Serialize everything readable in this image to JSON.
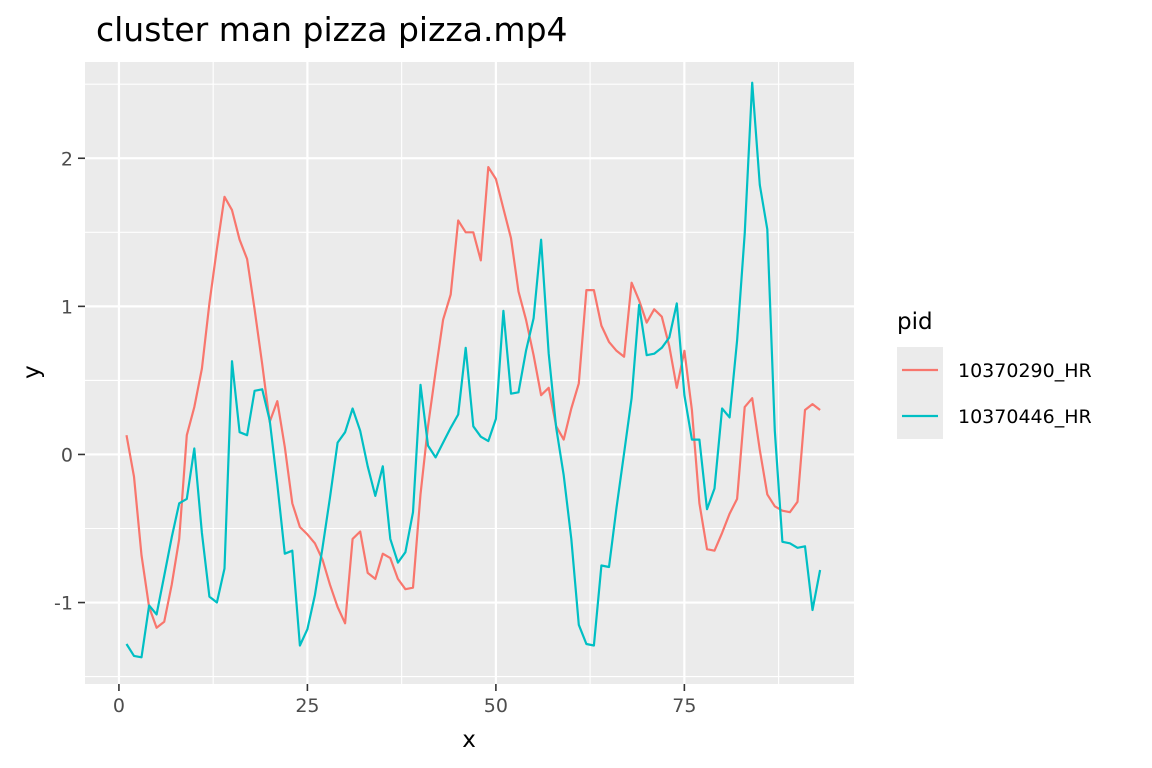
{
  "chart_data": {
    "type": "line",
    "title": "cluster man pizza pizza.mp4",
    "xlabel": "x",
    "ylabel": "y",
    "xlim": [
      -4.5,
      97.5
    ],
    "ylim": [
      -1.55,
      2.65
    ],
    "x_ticks": [
      0,
      25,
      50,
      75
    ],
    "x_tick_labels": [
      "0",
      "25",
      "50",
      "75"
    ],
    "y_ticks": [
      -1,
      0,
      1,
      2
    ],
    "y_tick_labels": [
      "-1",
      "0",
      "1",
      "2"
    ],
    "grid": true,
    "legend_position": "right",
    "legend": {
      "title": "pid"
    },
    "series": [
      {
        "name": "10370290_HR",
        "color": "#F8766D",
        "x": [
          1,
          2,
          3,
          4,
          5,
          6,
          7,
          8,
          9,
          10,
          11,
          12,
          13,
          14,
          15,
          16,
          17,
          18,
          19,
          20,
          21,
          22,
          23,
          24,
          25,
          26,
          27,
          28,
          29,
          30,
          31,
          32,
          33,
          34,
          35,
          36,
          37,
          38,
          39,
          40,
          41,
          42,
          43,
          44,
          45,
          46,
          47,
          48,
          49,
          50,
          51,
          52,
          53,
          54,
          55,
          56,
          57,
          58,
          59,
          60,
          61,
          62,
          63,
          64,
          65,
          66,
          67,
          68,
          69,
          70,
          71,
          72,
          73,
          74,
          75,
          76,
          77,
          78,
          79,
          80,
          81,
          82,
          83,
          84,
          85,
          86,
          87,
          88,
          89,
          90,
          91,
          92,
          93
        ],
        "y": [
          0.13,
          -0.15,
          -0.68,
          -1.03,
          -1.17,
          -1.13,
          -0.88,
          -0.57,
          0.13,
          0.32,
          0.58,
          1.02,
          1.39,
          1.74,
          1.65,
          1.45,
          1.32,
          0.98,
          0.61,
          0.22,
          0.36,
          0.05,
          -0.33,
          -0.49,
          -0.54,
          -0.6,
          -0.71,
          -0.88,
          -1.03,
          -1.14,
          -0.57,
          -0.52,
          -0.8,
          -0.84,
          -0.67,
          -0.7,
          -0.84,
          -0.91,
          -0.9,
          -0.27,
          0.19,
          0.56,
          0.91,
          1.08,
          1.58,
          1.5,
          1.5,
          1.31,
          1.94,
          1.86,
          1.66,
          1.46,
          1.1,
          0.91,
          0.67,
          0.4,
          0.45,
          0.19,
          0.1,
          0.31,
          0.48,
          1.11,
          1.11,
          0.87,
          0.76,
          0.7,
          0.66,
          1.16,
          1.04,
          0.89,
          0.98,
          0.93,
          0.73,
          0.45,
          0.7,
          0.3,
          -0.33,
          -0.64,
          -0.65,
          -0.53,
          -0.4,
          -0.3,
          0.32,
          0.38,
          0.03,
          -0.27,
          -0.35,
          -0.38,
          -0.39,
          -0.32,
          0.3,
          0.34,
          0.3
        ]
      },
      {
        "name": "10370446_HR",
        "color": "#00BFC4",
        "x": [
          1,
          2,
          3,
          4,
          5,
          6,
          7,
          8,
          9,
          10,
          11,
          12,
          13,
          14,
          15,
          16,
          17,
          18,
          19,
          20,
          21,
          22,
          23,
          24,
          25,
          26,
          27,
          28,
          29,
          30,
          31,
          32,
          33,
          34,
          35,
          36,
          37,
          38,
          39,
          40,
          41,
          42,
          43,
          44,
          45,
          46,
          47,
          48,
          49,
          50,
          51,
          52,
          53,
          54,
          55,
          56,
          57,
          58,
          59,
          60,
          61,
          62,
          63,
          64,
          65,
          66,
          67,
          68,
          69,
          70,
          71,
          72,
          73,
          74,
          75,
          76,
          77,
          78,
          79,
          80,
          81,
          82,
          83,
          84,
          85,
          86,
          87,
          88,
          89,
          90,
          91,
          92,
          93
        ],
        "y": [
          -1.28,
          -1.36,
          -1.37,
          -1.02,
          -1.08,
          -0.82,
          -0.56,
          -0.33,
          -0.3,
          0.04,
          -0.53,
          -0.96,
          -1.0,
          -0.77,
          0.63,
          0.15,
          0.13,
          0.43,
          0.44,
          0.23,
          -0.2,
          -0.67,
          -0.65,
          -1.29,
          -1.18,
          -0.95,
          -0.63,
          -0.29,
          0.08,
          0.15,
          0.31,
          0.16,
          -0.08,
          -0.28,
          -0.08,
          -0.57,
          -0.73,
          -0.66,
          -0.39,
          0.47,
          0.06,
          -0.02,
          0.08,
          0.18,
          0.27,
          0.72,
          0.19,
          0.12,
          0.09,
          0.24,
          0.97,
          0.41,
          0.42,
          0.7,
          0.92,
          1.45,
          0.68,
          0.18,
          -0.14,
          -0.57,
          -1.15,
          -1.28,
          -1.29,
          -0.75,
          -0.76,
          -0.36,
          0.01,
          0.38,
          1.01,
          0.67,
          0.68,
          0.72,
          0.79,
          1.02,
          0.4,
          0.1,
          0.1,
          -0.37,
          -0.23,
          0.31,
          0.25,
          0.77,
          1.49,
          2.51,
          1.82,
          1.52,
          0.16,
          -0.59,
          -0.6,
          -0.63,
          -0.62,
          -1.05,
          -0.78
        ]
      }
    ]
  }
}
